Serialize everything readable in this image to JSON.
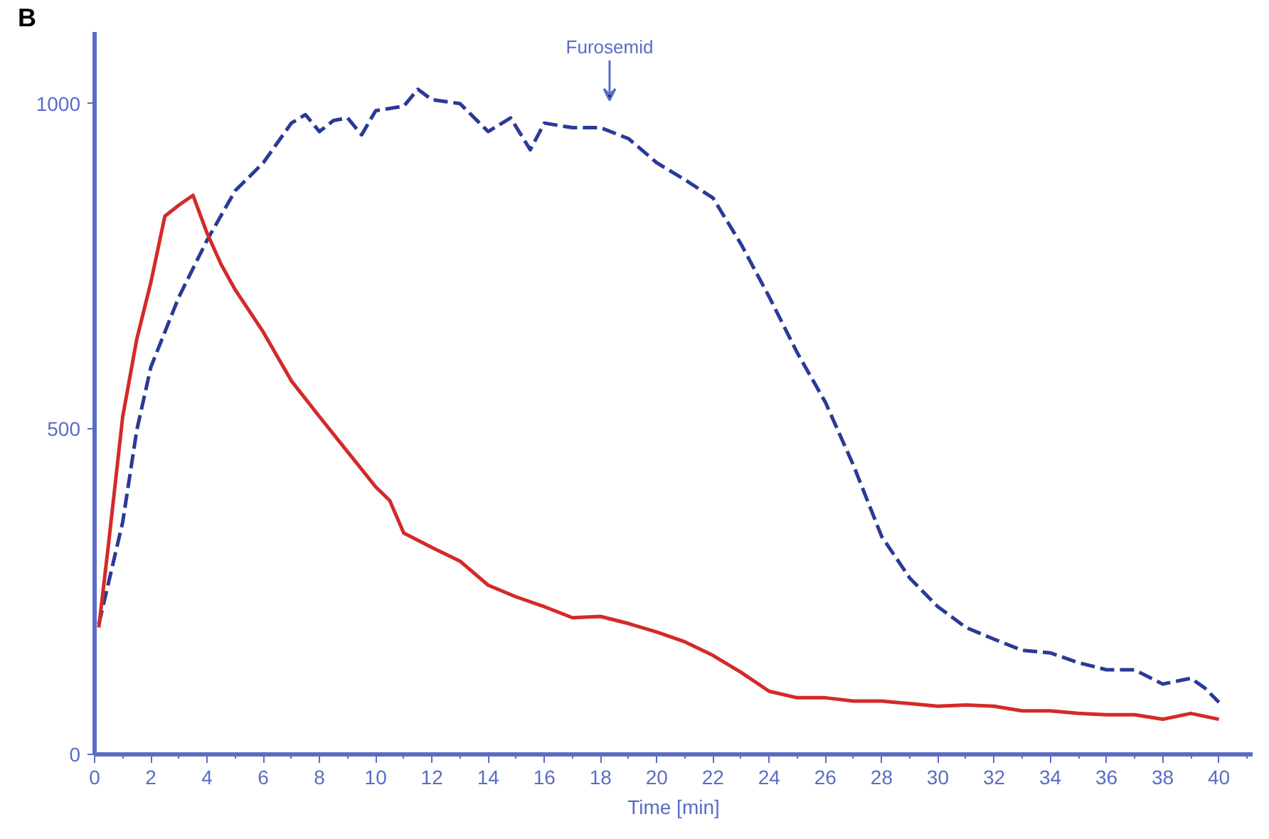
{
  "chart_data": {
    "type": "line",
    "xlabel": "Time [min]",
    "annotations": [
      "B",
      "Furosemid"
    ],
    "xlim": [
      0,
      41.2
    ],
    "ylim": [
      0,
      1110
    ],
    "xticks": [
      0,
      2,
      4,
      6,
      8,
      10,
      12,
      14,
      16,
      18,
      20,
      22,
      24,
      26,
      28,
      30,
      32,
      34,
      36,
      38,
      40
    ],
    "yticks": [
      0,
      500,
      1000
    ],
    "series": [
      {
        "color": "#2b3a96",
        "line_style": "dashed",
        "x": [
          0.15,
          1,
          1.5,
          2,
          3,
          4,
          5,
          6,
          7,
          7.5,
          8,
          8.5,
          9,
          9.5,
          10,
          11,
          11.5,
          12,
          13,
          14,
          14.8,
          15.5,
          16,
          17,
          18,
          19,
          20,
          21,
          22,
          23,
          24,
          25,
          26,
          27,
          28,
          29,
          30,
          31,
          32,
          33,
          34,
          35,
          36,
          37,
          38,
          39,
          39.5,
          40
        ],
        "values": [
          200,
          357,
          498,
          595,
          703,
          790,
          866,
          909,
          970,
          983,
          957,
          974,
          978,
          952,
          989,
          996,
          1022,
          1006,
          1000,
          957,
          978,
          929,
          970,
          963,
          963,
          946,
          909,
          883,
          855,
          784,
          703,
          617,
          541,
          444,
          335,
          271,
          227,
          195,
          177,
          160,
          156,
          141,
          130,
          130,
          108,
          117,
          102,
          80
        ]
      },
      {
        "color": "#d42a2a",
        "line_style": "solid",
        "x": [
          0.15,
          0.5,
          1,
          1.5,
          2,
          2.5,
          3,
          3.5,
          4,
          4.5,
          5,
          6,
          7,
          8,
          9,
          10,
          10.5,
          11,
          12,
          13,
          14,
          15,
          16,
          17,
          18,
          19,
          20,
          21,
          22,
          23,
          24,
          25,
          26,
          27,
          28,
          29,
          30,
          31,
          32,
          33,
          34,
          35,
          36,
          37,
          38,
          39,
          40
        ],
        "values": [
          195,
          325,
          519,
          638,
          725,
          827,
          844,
          859,
          801,
          753,
          714,
          649,
          574,
          519,
          465,
          411,
          390,
          340,
          318,
          297,
          260,
          242,
          227,
          210,
          212,
          201,
          188,
          173,
          152,
          126,
          97,
          87,
          87,
          82,
          82,
          78,
          74,
          76,
          74,
          67,
          67,
          63,
          61,
          61,
          54,
          63,
          54
        ]
      }
    ]
  }
}
